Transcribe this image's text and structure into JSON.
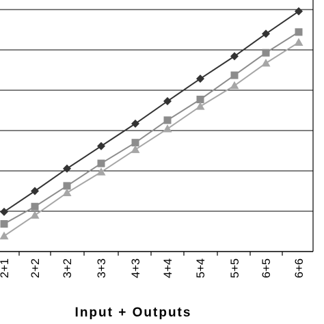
{
  "chart_data": {
    "type": "line",
    "title": "",
    "xlabel": "Input + Outputs",
    "ylabel": "",
    "categories": [
      "2+1",
      "2+2",
      "3+2",
      "3+3",
      "4+3",
      "4+4",
      "5+4",
      "5+5",
      "6+5",
      "6+6"
    ],
    "series": [
      {
        "marker": "diamond",
        "color": "#333333",
        "values": [
          2.15,
          2.75,
          3.4,
          4.05,
          4.7,
          5.35,
          6.0,
          6.65,
          7.3,
          7.95
        ]
      },
      {
        "marker": "square",
        "color": "#8c8c8c",
        "values": [
          1.8,
          2.3,
          2.9,
          3.55,
          4.15,
          4.8,
          5.4,
          6.1,
          6.75,
          7.35
        ]
      },
      {
        "marker": "triangle",
        "color": "#a6a6a6",
        "values": [
          1.45,
          2.05,
          2.7,
          3.3,
          3.95,
          4.55,
          5.2,
          5.8,
          6.45,
          7.05
        ]
      }
    ],
    "ylim": [
      1,
      8
    ],
    "grid": true,
    "legend": "none"
  }
}
